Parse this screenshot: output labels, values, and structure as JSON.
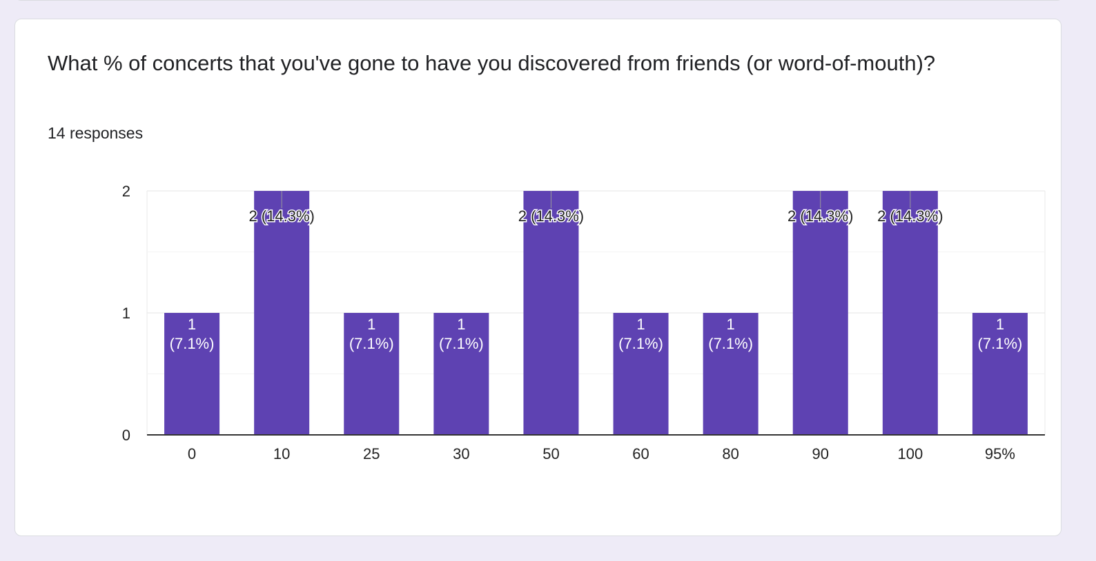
{
  "question": {
    "title": "What % of concerts that you've gone to have you discovered from friends (or word-of-mouth)?",
    "responses": "14 responses"
  },
  "colors": {
    "bar": "#5e42b2",
    "background": "#eeebf7",
    "card": "#ffffff",
    "grid": "#e8e8e8",
    "axis": "#333333"
  },
  "chart_data": {
    "type": "bar",
    "categories": [
      "0",
      "10",
      "25",
      "30",
      "50",
      "60",
      "80",
      "90",
      "100",
      "95%"
    ],
    "values": [
      1,
      2,
      1,
      1,
      2,
      1,
      1,
      2,
      2,
      1
    ],
    "data_labels": [
      "1 (7.1%)",
      "2 (14.3%)",
      "1 (7.1%)",
      "1 (7.1%)",
      "2 (14.3%)",
      "1 (7.1%)",
      "1 (7.1%)",
      "2 (14.3%)",
      "2 (14.3%)",
      "1 (7.1%)"
    ],
    "yticks": [
      0,
      1,
      2
    ],
    "ylim": [
      0,
      2
    ],
    "grid": true
  }
}
